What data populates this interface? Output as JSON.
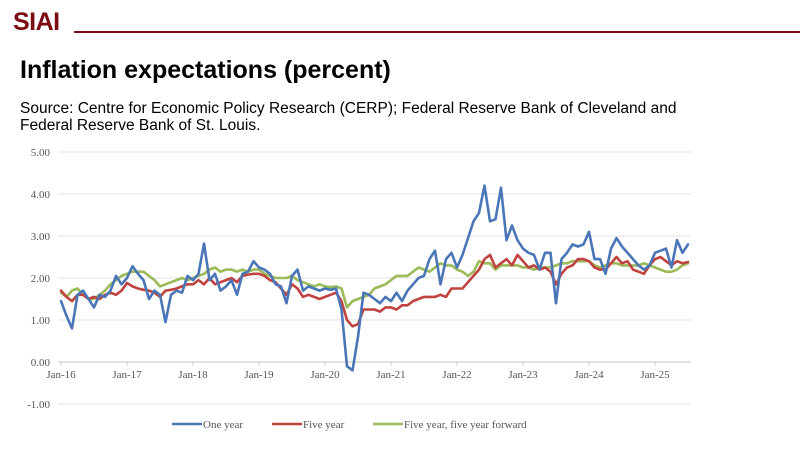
{
  "header": {
    "logo": "SIAI",
    "title": "Inflation expectations (percent)",
    "source": "Source: Centre for Economic Policy Research (CERP); Federal Reserve Bank of Cleveland and Federal Reserve Bank of St. Louis.",
    "brand_color": "#7a0c12"
  },
  "chart_data": {
    "type": "line",
    "title": "Inflation expectations (percent)",
    "xlabel": "",
    "ylabel": "",
    "ylim": [
      -1,
      5
    ],
    "yticks": [
      5,
      4,
      3,
      2,
      1,
      0,
      -1
    ],
    "ytick_labels": [
      "5.00",
      "4.00",
      "3.00",
      "2.00",
      "1.00",
      "0.00",
      "-1.00"
    ],
    "x_start": "Jan-16",
    "x_frequency": "monthly",
    "xtick_labels": [
      "Jan-16",
      "Jan-17",
      "Jan-18",
      "Jan-19",
      "Jan-20",
      "Jan-21",
      "Jan-22",
      "Jan-23",
      "Jan-24",
      "Jan-25"
    ],
    "grid": true,
    "legend_position": "bottom",
    "series": [
      {
        "name": "One year",
        "color": "#4a76b8",
        "values": [
          1.45,
          1.1,
          0.8,
          1.6,
          1.7,
          1.5,
          1.3,
          1.6,
          1.55,
          1.7,
          2.05,
          1.85,
          2.0,
          2.28,
          2.1,
          1.95,
          1.5,
          1.7,
          1.6,
          0.95,
          1.6,
          1.7,
          1.65,
          2.05,
          1.95,
          2.1,
          2.82,
          1.95,
          2.1,
          1.7,
          1.8,
          1.95,
          1.6,
          2.1,
          2.15,
          2.4,
          2.25,
          2.2,
          2.1,
          1.85,
          1.8,
          1.4,
          2.05,
          2.2,
          1.7,
          1.8,
          1.75,
          1.7,
          1.75,
          1.72,
          1.75,
          1.25,
          -0.1,
          -0.2,
          0.6,
          1.65,
          1.6,
          1.5,
          1.4,
          1.55,
          1.45,
          1.65,
          1.45,
          1.7,
          1.85,
          2.0,
          2.05,
          2.45,
          2.65,
          1.85,
          2.45,
          2.6,
          2.25,
          2.55,
          2.95,
          3.35,
          3.55,
          4.2,
          3.35,
          3.4,
          4.15,
          2.9,
          3.25,
          2.9,
          2.7,
          2.6,
          2.55,
          2.2,
          2.6,
          2.6,
          1.4,
          2.45,
          2.6,
          2.8,
          2.75,
          2.8,
          3.1,
          2.45,
          2.45,
          2.1,
          2.7,
          2.95,
          2.75,
          2.6,
          2.45,
          2.3,
          2.2,
          2.3,
          2.6,
          2.65,
          2.7,
          2.25,
          2.9,
          2.6,
          2.8
        ]
      },
      {
        "name": "Five year",
        "color": "#c0433f",
        "values": [
          1.7,
          1.55,
          1.45,
          1.6,
          1.6,
          1.5,
          1.55,
          1.5,
          1.6,
          1.65,
          1.6,
          1.7,
          1.88,
          1.8,
          1.75,
          1.72,
          1.7,
          1.65,
          1.55,
          1.7,
          1.72,
          1.75,
          1.8,
          1.85,
          1.85,
          1.95,
          1.85,
          2.0,
          1.85,
          1.9,
          1.95,
          2.0,
          1.9,
          2.05,
          2.08,
          2.1,
          2.1,
          2.05,
          1.95,
          1.9,
          1.75,
          1.6,
          1.85,
          1.75,
          1.55,
          1.6,
          1.55,
          1.5,
          1.55,
          1.6,
          1.65,
          1.45,
          1.0,
          0.85,
          0.9,
          1.25,
          1.25,
          1.25,
          1.2,
          1.3,
          1.3,
          1.25,
          1.35,
          1.35,
          1.45,
          1.5,
          1.55,
          1.55,
          1.55,
          1.6,
          1.55,
          1.75,
          1.75,
          1.75,
          1.9,
          2.05,
          2.2,
          2.45,
          2.55,
          2.25,
          2.35,
          2.45,
          2.3,
          2.55,
          2.4,
          2.25,
          2.3,
          2.2,
          2.25,
          2.15,
          1.85,
          2.1,
          2.25,
          2.3,
          2.45,
          2.45,
          2.4,
          2.25,
          2.2,
          2.2,
          2.35,
          2.5,
          2.35,
          2.4,
          2.2,
          2.15,
          2.1,
          2.3,
          2.45,
          2.5,
          2.4,
          2.3,
          2.4,
          2.35,
          2.38
        ]
      },
      {
        "name": "Five year, five year forward",
        "color": "#9bbb59",
        "values": [
          1.65,
          1.55,
          1.7,
          1.75,
          1.6,
          1.5,
          1.5,
          1.6,
          1.7,
          1.85,
          1.95,
          2.05,
          2.1,
          2.15,
          2.15,
          2.15,
          2.05,
          1.95,
          1.8,
          1.85,
          1.9,
          1.95,
          2.0,
          1.95,
          2.0,
          2.05,
          2.1,
          2.2,
          2.25,
          2.15,
          2.2,
          2.2,
          2.15,
          2.2,
          2.15,
          2.2,
          2.2,
          2.1,
          2.05,
          2.0,
          2.0,
          2.0,
          2.05,
          1.95,
          1.9,
          1.85,
          1.8,
          1.85,
          1.8,
          1.78,
          1.8,
          1.75,
          1.3,
          1.45,
          1.5,
          1.55,
          1.6,
          1.75,
          1.8,
          1.85,
          1.95,
          2.05,
          2.05,
          2.05,
          2.15,
          2.25,
          2.2,
          2.15,
          2.25,
          2.35,
          2.3,
          2.3,
          2.2,
          2.15,
          2.05,
          2.15,
          2.4,
          2.35,
          2.35,
          2.2,
          2.3,
          2.3,
          2.3,
          2.3,
          2.25,
          2.25,
          2.2,
          2.25,
          2.25,
          2.25,
          2.3,
          2.35,
          2.35,
          2.4,
          2.4,
          2.4,
          2.4,
          2.3,
          2.25,
          2.3,
          2.35,
          2.35,
          2.3,
          2.3,
          2.3,
          2.3,
          2.35,
          2.3,
          2.25,
          2.2,
          2.15,
          2.15,
          2.2,
          2.3,
          2.35
        ]
      }
    ]
  }
}
